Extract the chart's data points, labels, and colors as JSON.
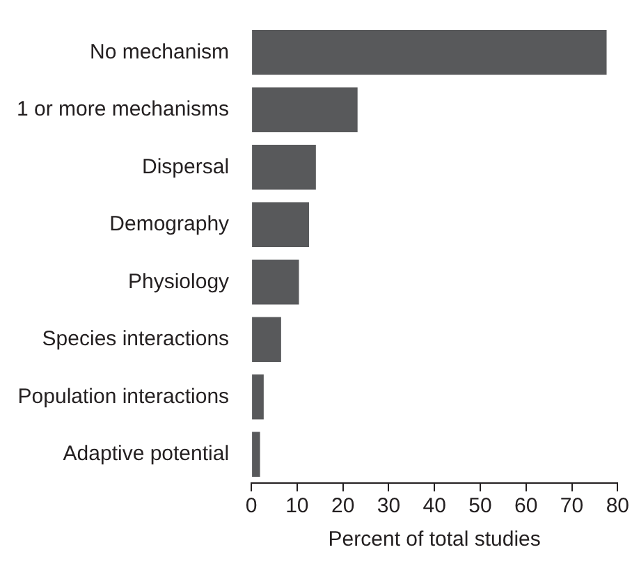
{
  "chart_data": {
    "type": "bar",
    "orientation": "horizontal",
    "xlabel": "Percent of total studies",
    "categories": [
      "No mechanism",
      "1 or more mechanisms",
      "Dispersal",
      "Demography",
      "Physiology",
      "Species interactions",
      "Population interactions",
      "Adaptive potential"
    ],
    "values": [
      77.6,
      23.2,
      14.1,
      12.6,
      10.4,
      6.5,
      2.7,
      1.9
    ],
    "color": "#58595b",
    "xlim": [
      0,
      80
    ],
    "xticks": [
      0,
      10,
      20,
      30,
      40,
      50,
      60,
      70,
      80
    ],
    "grid": false,
    "legend": false
  }
}
